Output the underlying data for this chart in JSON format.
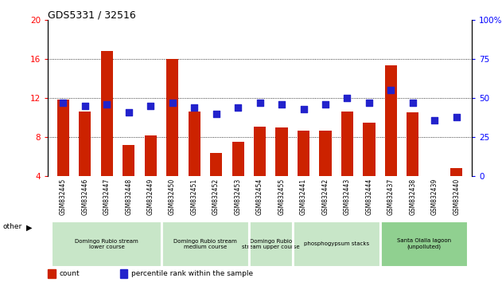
{
  "title": "GDS5331 / 32516",
  "samples": [
    "GSM832445",
    "GSM832446",
    "GSM832447",
    "GSM832448",
    "GSM832449",
    "GSM832450",
    "GSM832451",
    "GSM832452",
    "GSM832453",
    "GSM832454",
    "GSM832455",
    "GSM832441",
    "GSM832442",
    "GSM832443",
    "GSM832444",
    "GSM832437",
    "GSM832438",
    "GSM832439",
    "GSM832440"
  ],
  "counts": [
    11.8,
    10.6,
    16.8,
    7.2,
    8.2,
    16.0,
    10.6,
    6.4,
    7.5,
    9.1,
    9.0,
    8.7,
    8.7,
    10.6,
    9.5,
    15.3,
    10.5,
    3.8,
    4.8
  ],
  "percentile": [
    47,
    45,
    46,
    41,
    45,
    47,
    44,
    40,
    44,
    47,
    46,
    43,
    46,
    50,
    47,
    55,
    47,
    36,
    38
  ],
  "ylim_left": [
    4,
    20
  ],
  "ylim_right": [
    0,
    100
  ],
  "yticks_left": [
    4,
    8,
    12,
    16,
    20
  ],
  "yticks_right": [
    0,
    25,
    50,
    75,
    100
  ],
  "bar_color": "#cc2200",
  "dot_color": "#2222cc",
  "grid_color": "#000000",
  "groups": [
    {
      "label": "Domingo Rubio stream\nlower course",
      "start": 0,
      "end": 5,
      "color": "#c8e6c8"
    },
    {
      "label": "Domingo Rubio stream\nmedium course",
      "start": 5,
      "end": 9,
      "color": "#c8e6c8"
    },
    {
      "label": "Domingo Rubio\nstream upper course",
      "start": 9,
      "end": 11,
      "color": "#c8e6c8"
    },
    {
      "label": "phosphogypsum stacks",
      "start": 11,
      "end": 15,
      "color": "#c8e6c8"
    },
    {
      "label": "Santa Olalla lagoon\n(unpolluted)",
      "start": 15,
      "end": 19,
      "color": "#90d090"
    }
  ],
  "legend_count_label": "count",
  "legend_pct_label": "percentile rank within the sample",
  "other_label": "other",
  "bar_width": 0.55,
  "dot_size": 28
}
